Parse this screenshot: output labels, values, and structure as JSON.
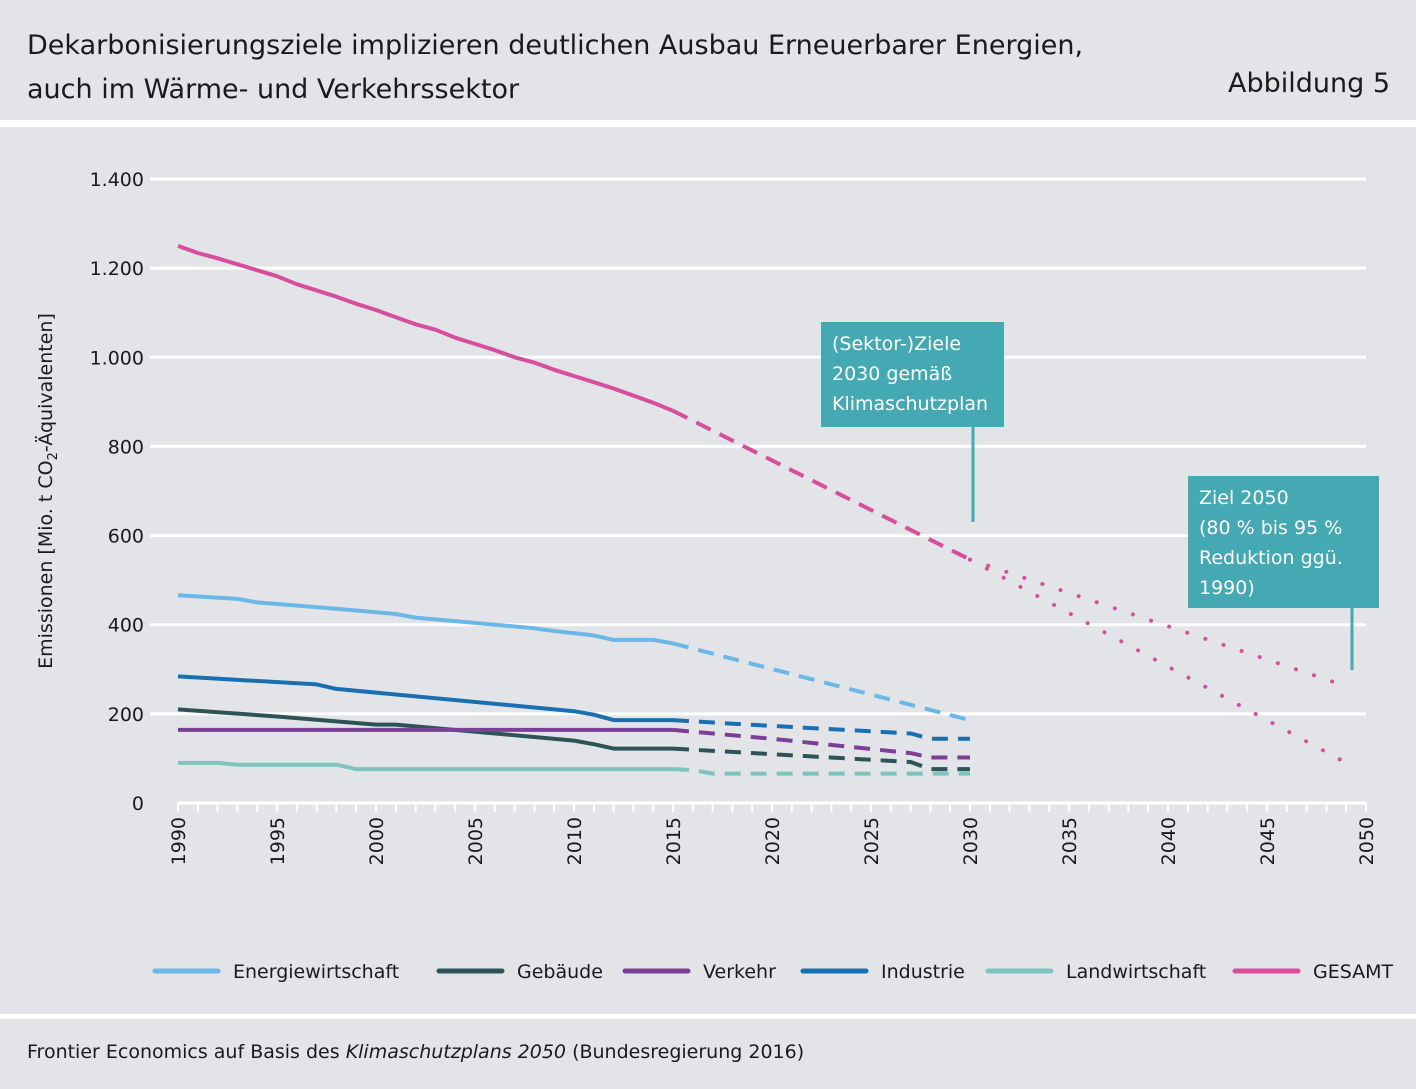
{
  "header": {
    "title_line1": "Dekarbonisierungsziele implizieren deutlichen Ausbau Erneuerbarer Energien,",
    "title_line2": "auch im Wärme- und Verkehrssektor",
    "figure_label": "Abbildung 5"
  },
  "footer": {
    "source_prefix": "Frontier Economics auf Basis des ",
    "source_italic": "Klimaschutzplans 2050",
    "source_suffix": " (Bundesregierung 2016)"
  },
  "chart_data": {
    "type": "line",
    "ylabel_main": "Emissionen [Mio. t CO",
    "ylabel_sub": "2",
    "ylabel_end": "-Äquivalenten]",
    "ylim": [
      0,
      1400
    ],
    "xlim": [
      1990,
      2050
    ],
    "yticks": [
      0,
      200,
      400,
      600,
      800,
      1000,
      1200,
      1400
    ],
    "ytick_labels": [
      "0",
      "200",
      "400",
      "600",
      "800",
      "1.000",
      "1.200",
      "1.400"
    ],
    "xticks": [
      1990,
      1995,
      2000,
      2005,
      2010,
      2015,
      2020,
      2025,
      2030,
      2035,
      2040,
      2045,
      2050
    ],
    "xtick_labels": [
      "1990",
      "1995",
      "2000",
      "2005",
      "2010",
      "2015",
      "2020",
      "2025",
      "2030",
      "2035",
      "2040",
      "2045",
      "2050"
    ],
    "grid": true,
    "legend_position": "bottom",
    "series": [
      {
        "name": "Energiewirtschaft",
        "color": "#6bb8e8",
        "historical": [
          [
            1990,
            466
          ],
          [
            1993,
            458
          ],
          [
            1994,
            450
          ],
          [
            1998,
            436
          ],
          [
            2001,
            424
          ],
          [
            2002,
            416
          ],
          [
            2008,
            392
          ],
          [
            2009,
            386
          ],
          [
            2011,
            376
          ],
          [
            2012,
            366
          ],
          [
            2014,
            366
          ],
          [
            2015,
            358
          ]
        ],
        "target_dashed": [
          [
            2015,
            358
          ],
          [
            2030,
            186
          ]
        ]
      },
      {
        "name": "Gebäude",
        "color": "#2d5356",
        "historical": [
          [
            1990,
            210
          ],
          [
            1995,
            194
          ],
          [
            2000,
            176
          ],
          [
            2001,
            176
          ],
          [
            2010,
            140
          ],
          [
            2011,
            132
          ],
          [
            2012,
            122
          ],
          [
            2015,
            122
          ]
        ],
        "target_dashed": [
          [
            2015,
            122
          ],
          [
            2027,
            92
          ],
          [
            2028,
            76
          ],
          [
            2030,
            76
          ]
        ]
      },
      {
        "name": "Verkehr",
        "color": "#7b3f96",
        "historical": [
          [
            1990,
            164
          ],
          [
            2015,
            164
          ]
        ],
        "target_dashed": [
          [
            2015,
            164
          ],
          [
            2020,
            144
          ],
          [
            2027,
            112
          ],
          [
            2028,
            102
          ],
          [
            2030,
            102
          ]
        ]
      },
      {
        "name": "Industrie",
        "color": "#1a6fb0",
        "historical": [
          [
            1990,
            284
          ],
          [
            1997,
            266
          ],
          [
            1998,
            256
          ],
          [
            2010,
            206
          ],
          [
            2011,
            198
          ],
          [
            2012,
            186
          ],
          [
            2015,
            186
          ]
        ],
        "target_dashed": [
          [
            2015,
            186
          ],
          [
            2018,
            178
          ],
          [
            2027,
            156
          ],
          [
            2028,
            144
          ],
          [
            2030,
            144
          ]
        ]
      },
      {
        "name": "Landwirtschaft",
        "color": "#7cc4bd",
        "historical": [
          [
            1990,
            90
          ],
          [
            1992,
            90
          ],
          [
            1993,
            86
          ],
          [
            1998,
            86
          ],
          [
            1999,
            76
          ],
          [
            2015,
            76
          ]
        ],
        "target_dashed": [
          [
            2015,
            76
          ],
          [
            2016,
            74
          ],
          [
            2017,
            66
          ],
          [
            2030,
            66
          ]
        ]
      },
      {
        "name": "GESAMT",
        "color": "#d64f9c",
        "historical": [
          [
            1990,
            1250
          ],
          [
            1991,
            1234
          ],
          [
            1992,
            1222
          ],
          [
            1995,
            1182
          ],
          [
            1996,
            1164
          ],
          [
            1998,
            1136
          ],
          [
            1999,
            1120
          ],
          [
            2000,
            1106
          ],
          [
            2001,
            1090
          ],
          [
            2002,
            1074
          ],
          [
            2003,
            1062
          ],
          [
            2004,
            1044
          ],
          [
            2005,
            1030
          ],
          [
            2006,
            1016
          ],
          [
            2007,
            1000
          ],
          [
            2008,
            988
          ],
          [
            2009,
            972
          ],
          [
            2010,
            958
          ],
          [
            2011,
            944
          ],
          [
            2012,
            930
          ],
          [
            2013,
            914
          ],
          [
            2014,
            898
          ],
          [
            2015,
            880
          ]
        ],
        "target_dashed": [
          [
            2015,
            880
          ],
          [
            2030,
            546
          ]
        ],
        "target_2050_upper_dotted": [
          [
            2030,
            546
          ],
          [
            2049,
            262
          ]
        ],
        "target_2050_lower_dotted": [
          [
            2030,
            546
          ],
          [
            2049,
            90
          ]
        ]
      }
    ],
    "annotations": [
      {
        "id": "sektor-ziele",
        "lines": [
          "(Sektor-)Ziele",
          "2030 gemäß",
          "Klimaschutzplan"
        ],
        "pointer_year": 2030,
        "pointer_value": 625
      },
      {
        "id": "ziel-2050",
        "lines": [
          "Ziel 2050",
          "(80 % bis 95 %",
          "Reduktion ggü.",
          "1990)"
        ],
        "pointer_year": 2049,
        "pointer_value": 290
      }
    ],
    "annotation_color": "#44a9b2"
  }
}
